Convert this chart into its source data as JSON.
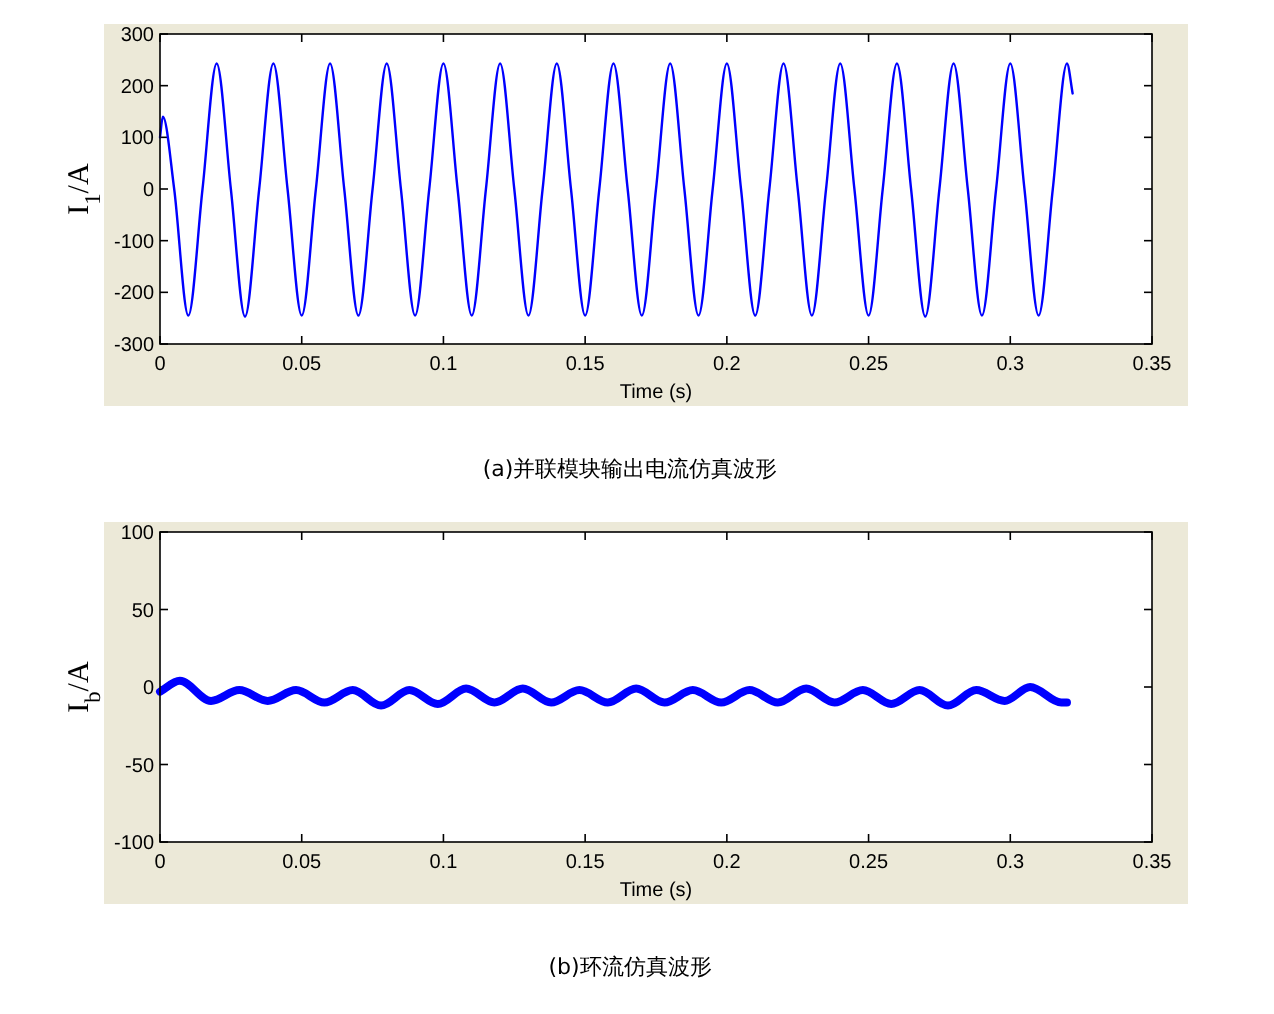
{
  "chart_data": [
    {
      "type": "line",
      "xlabel": "Time (s)",
      "ylabel": "I$_{1}$/A",
      "annotations": [
        "(a)并联模块输出电流仿真波形"
      ],
      "xlim": [
        0,
        0.35
      ],
      "ylim": [
        -300,
        300
      ],
      "xticks": [
        0,
        0.05,
        0.1,
        0.15,
        0.2,
        0.25,
        0.3,
        0.35
      ],
      "yticks": [
        -300,
        -200,
        -100,
        0,
        100,
        200,
        300
      ],
      "x": [
        0,
        0.001,
        0.005,
        0.01,
        0.015,
        0.02,
        0.025,
        0.03,
        0.035,
        0.04,
        0.045,
        0.05,
        0.055,
        0.06,
        0.065,
        0.07,
        0.075,
        0.08,
        0.085,
        0.09,
        0.095,
        0.1,
        0.105,
        0.11,
        0.115,
        0.12,
        0.125,
        0.13,
        0.135,
        0.14,
        0.145,
        0.15,
        0.155,
        0.16,
        0.165,
        0.17,
        0.175,
        0.18,
        0.185,
        0.19,
        0.195,
        0.2,
        0.205,
        0.21,
        0.215,
        0.22,
        0.225,
        0.23,
        0.235,
        0.24,
        0.245,
        0.25,
        0.255,
        0.26,
        0.265,
        0.27,
        0.275,
        0.28,
        0.285,
        0.29,
        0.295,
        0.3,
        0.305,
        0.31,
        0.315,
        0.32,
        0.322
      ],
      "series": [
        {
          "color": "#0000ff",
          "values": [
            100,
            140,
            0,
            -245,
            0,
            243,
            0,
            -247,
            0,
            243,
            0,
            -245,
            0,
            243,
            0,
            -245,
            0,
            243,
            0,
            -245,
            0,
            243,
            0,
            -245,
            0,
            243,
            0,
            -245,
            0,
            243,
            0,
            -245,
            0,
            243,
            0,
            -245,
            0,
            243,
            0,
            -245,
            0,
            243,
            0,
            -245,
            0,
            243,
            0,
            -245,
            0,
            243,
            0,
            -245,
            0,
            243,
            0,
            -247,
            0,
            243,
            0,
            -245,
            0,
            243,
            0,
            -245,
            0,
            243,
            185
          ]
        }
      ]
    },
    {
      "type": "line",
      "xlabel": "Time (s)",
      "ylabel": "I$_{b}$/A",
      "annotations": [
        "(b)环流仿真波形"
      ],
      "xlim": [
        0,
        0.35
      ],
      "ylim": [
        -100,
        100
      ],
      "xticks": [
        0,
        0.05,
        0.1,
        0.15,
        0.2,
        0.25,
        0.3,
        0.35
      ],
      "yticks": [
        -100,
        -50,
        0,
        50,
        100
      ],
      "x": [
        0,
        0.007,
        0.018,
        0.028,
        0.038,
        0.048,
        0.058,
        0.068,
        0.078,
        0.088,
        0.098,
        0.108,
        0.118,
        0.128,
        0.138,
        0.148,
        0.158,
        0.168,
        0.178,
        0.188,
        0.198,
        0.208,
        0.218,
        0.228,
        0.238,
        0.248,
        0.258,
        0.268,
        0.278,
        0.288,
        0.298,
        0.307,
        0.318,
        0.32
      ],
      "series": [
        {
          "color": "#0000ff",
          "values": [
            -3,
            4,
            -9,
            -2,
            -9,
            -2,
            -10,
            -2,
            -12,
            -2,
            -11,
            -1,
            -10,
            -1,
            -10,
            -2,
            -10,
            -1,
            -10,
            -2,
            -10,
            -2,
            -10,
            -1,
            -10,
            -2,
            -11,
            -2,
            -12,
            -2,
            -9,
            0,
            -10,
            -10
          ]
        }
      ]
    }
  ]
}
